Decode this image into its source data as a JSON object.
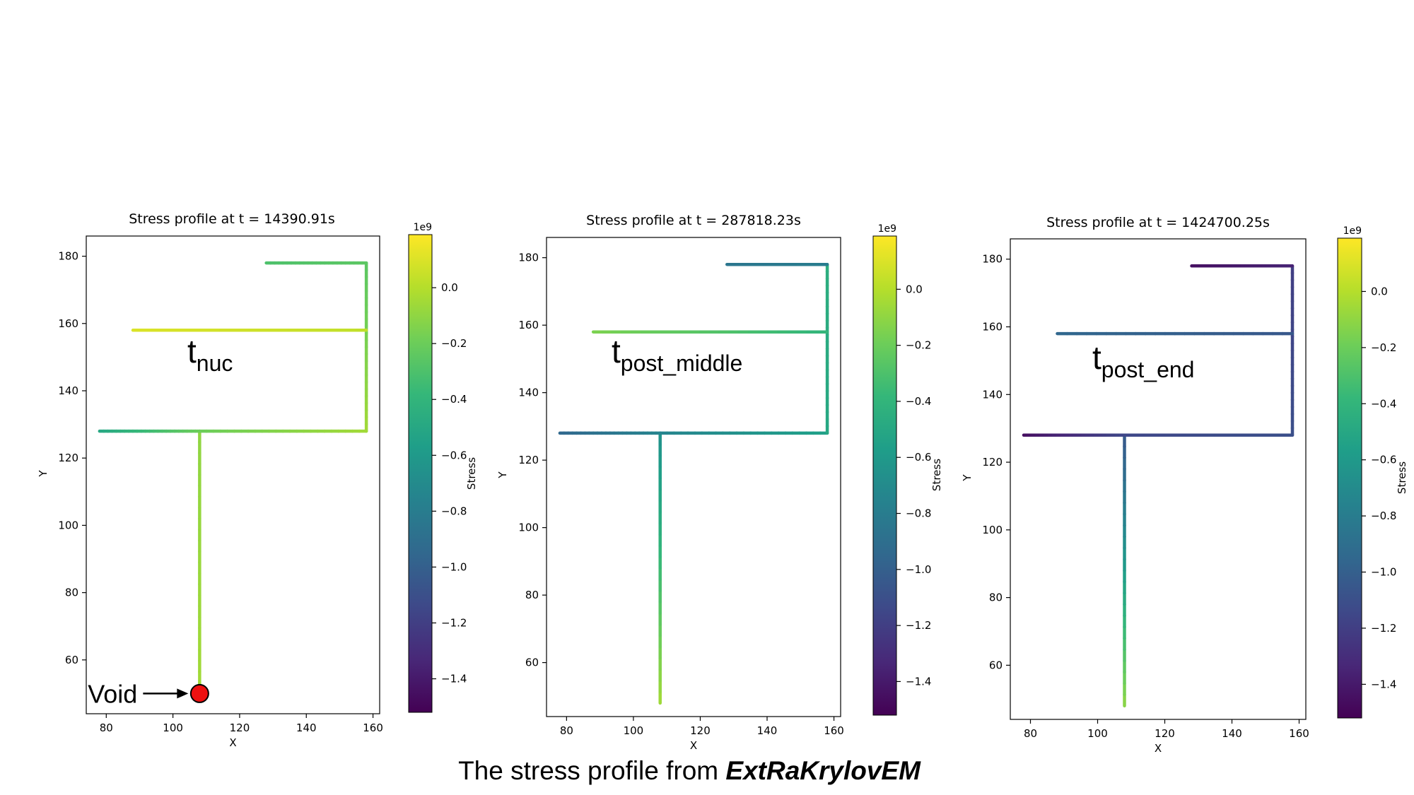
{
  "figure": {
    "caption_text": "The stress profile from ",
    "caption_emph": "ExtRaKrylovEM"
  },
  "colors": {
    "viridis": [
      "#440154",
      "#482878",
      "#3e4989",
      "#31688e",
      "#26828e",
      "#1f9e89",
      "#35b779",
      "#6ece58",
      "#b5de2b",
      "#fde725"
    ],
    "void_marker": "#ee1111"
  },
  "chart_data": [
    {
      "type": "line",
      "title": "Stress profile at t = 14390.91s",
      "xlabel": "X",
      "ylabel": "Y",
      "xlim": [
        74,
        162
      ],
      "ylim": [
        44,
        186
      ],
      "xticks": [
        80,
        100,
        120,
        140,
        160
      ],
      "yticks": [
        60,
        80,
        100,
        120,
        140,
        160,
        180
      ],
      "annotation": {
        "main": "t",
        "sub": "nuc"
      },
      "void_label": "Void",
      "void_point": [
        108,
        50
      ],
      "colorbar": {
        "label": "Stress",
        "exponent": "1e9",
        "vmin": -1.52,
        "vmax": 0.19,
        "ticks": [
          0.0,
          -0.2,
          -0.4,
          -0.6,
          -0.8,
          -1.0,
          -1.2,
          -1.4
        ],
        "tick_labels": [
          "0.0",
          "−0.2",
          "−0.4",
          "−0.6",
          "−0.8",
          "−1.0",
          "−1.2",
          "−1.4"
        ]
      },
      "series": [
        {
          "x": [
            108,
            108
          ],
          "y": [
            50,
            128
          ],
          "stress": [
            -0.05,
            -0.1
          ]
        },
        {
          "x": [
            78,
            108
          ],
          "y": [
            128,
            128
          ],
          "stress": [
            -0.5,
            -0.2
          ]
        },
        {
          "x": [
            108,
            158
          ],
          "y": [
            128,
            128
          ],
          "stress": [
            -0.2,
            -0.05
          ]
        },
        {
          "x": [
            158,
            158
          ],
          "y": [
            128,
            178
          ],
          "stress": [
            -0.05,
            -0.25
          ]
        },
        {
          "x": [
            88,
            158
          ],
          "y": [
            158,
            158
          ],
          "stress": [
            0.1,
            0.03
          ]
        },
        {
          "x": [
            128,
            158
          ],
          "y": [
            178,
            178
          ],
          "stress": [
            -0.3,
            -0.25
          ]
        }
      ]
    },
    {
      "type": "line",
      "title": "Stress profile at t = 287818.23s",
      "xlabel": "X",
      "ylabel": "Y",
      "xlim": [
        74,
        162
      ],
      "ylim": [
        44,
        186
      ],
      "xticks": [
        80,
        100,
        120,
        140,
        160
      ],
      "yticks": [
        60,
        80,
        100,
        120,
        140,
        160,
        180
      ],
      "annotation": {
        "main": "t",
        "sub": "post_middle"
      },
      "colorbar": {
        "label": "Stress",
        "exponent": "1e9",
        "vmin": -1.52,
        "vmax": 0.19,
        "ticks": [
          0.0,
          -0.2,
          -0.4,
          -0.6,
          -0.8,
          -1.0,
          -1.2,
          -1.4
        ],
        "tick_labels": [
          "0.0",
          "−0.2",
          "−0.4",
          "−0.6",
          "−0.8",
          "−1.0",
          "−1.2",
          "−1.4"
        ]
      },
      "series": [
        {
          "x": [
            108,
            108
          ],
          "y": [
            48,
            128
          ],
          "stress": [
            -0.05,
            -0.65
          ]
        },
        {
          "x": [
            78,
            108
          ],
          "y": [
            128,
            128
          ],
          "stress": [
            -0.95,
            -0.75
          ]
        },
        {
          "x": [
            108,
            158
          ],
          "y": [
            128,
            128
          ],
          "stress": [
            -0.75,
            -0.55
          ]
        },
        {
          "x": [
            158,
            158
          ],
          "y": [
            128,
            178
          ],
          "stress": [
            -0.5,
            -0.45
          ]
        },
        {
          "x": [
            88,
            158
          ],
          "y": [
            158,
            158
          ],
          "stress": [
            -0.15,
            -0.4
          ]
        },
        {
          "x": [
            128,
            158
          ],
          "y": [
            178,
            178
          ],
          "stress": [
            -0.85,
            -0.8
          ]
        }
      ]
    },
    {
      "type": "line",
      "title": "Stress profile at t = 1424700.25s",
      "xlabel": "X",
      "ylabel": "Y",
      "xlim": [
        74,
        162
      ],
      "ylim": [
        44,
        186
      ],
      "xticks": [
        80,
        100,
        120,
        140,
        160
      ],
      "yticks": [
        60,
        80,
        100,
        120,
        140,
        160,
        180
      ],
      "annotation": {
        "main": "t",
        "sub": "post_end"
      },
      "colorbar": {
        "label": "Stress",
        "exponent": "1e9",
        "vmin": -1.52,
        "vmax": 0.19,
        "ticks": [
          0.0,
          -0.2,
          -0.4,
          -0.6,
          -0.8,
          -1.0,
          -1.2,
          -1.4
        ],
        "tick_labels": [
          "0.0",
          "−0.2",
          "−0.4",
          "−0.6",
          "−0.8",
          "−1.0",
          "−1.2",
          "−1.4"
        ]
      },
      "series": [
        {
          "x": [
            108,
            108
          ],
          "y": [
            48,
            128
          ],
          "stress": [
            -0.1,
            -1.05
          ]
        },
        {
          "x": [
            78,
            108
          ],
          "y": [
            128,
            128
          ],
          "stress": [
            -1.45,
            -1.15
          ]
        },
        {
          "x": [
            108,
            158
          ],
          "y": [
            128,
            128
          ],
          "stress": [
            -1.15,
            -1.1
          ]
        },
        {
          "x": [
            158,
            158
          ],
          "y": [
            128,
            178
          ],
          "stress": [
            -1.1,
            -1.2
          ]
        },
        {
          "x": [
            88,
            158
          ],
          "y": [
            158,
            158
          ],
          "stress": [
            -0.95,
            -1.05
          ]
        },
        {
          "x": [
            128,
            158
          ],
          "y": [
            178,
            178
          ],
          "stress": [
            -1.45,
            -1.35
          ]
        }
      ]
    }
  ]
}
